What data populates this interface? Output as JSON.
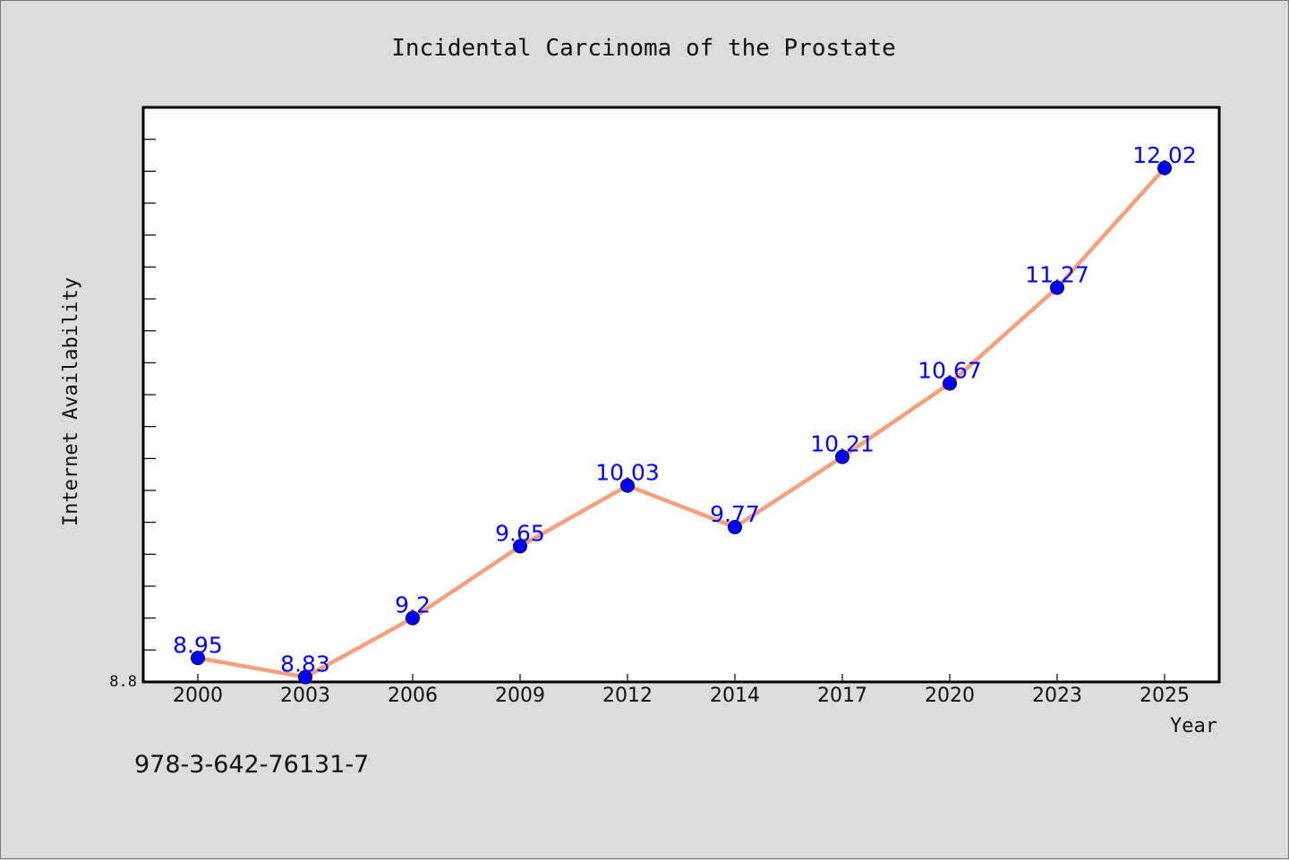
{
  "chart_data": {
    "type": "line",
    "title": "Incidental Carcinoma of the Prostate",
    "xlabel": "Year",
    "ylabel": "Internet Availability",
    "categories": [
      "2000",
      "2003",
      "2006",
      "2009",
      "2012",
      "2014",
      "2017",
      "2020",
      "2023",
      "2025"
    ],
    "values": [
      8.95,
      8.83,
      9.2,
      9.65,
      10.03,
      9.77,
      10.21,
      10.67,
      11.27,
      12.02
    ],
    "data_labels": [
      "8.95",
      "8.83",
      "9.2",
      "9.65",
      "10.03",
      "9.77",
      "10.21",
      "10.67",
      "11.27",
      "12.02"
    ],
    "ylim": [
      8.8,
      12.4
    ],
    "y_tick_label": "8.8",
    "grid": false,
    "line_color": "#f4a07c",
    "marker_color": "#0000ff",
    "label_color": "#0000ff",
    "background_color": "#dcdcdc",
    "plot_background_color": "#ffffff"
  },
  "footer": {
    "code": "978-3-642-76131-7"
  }
}
